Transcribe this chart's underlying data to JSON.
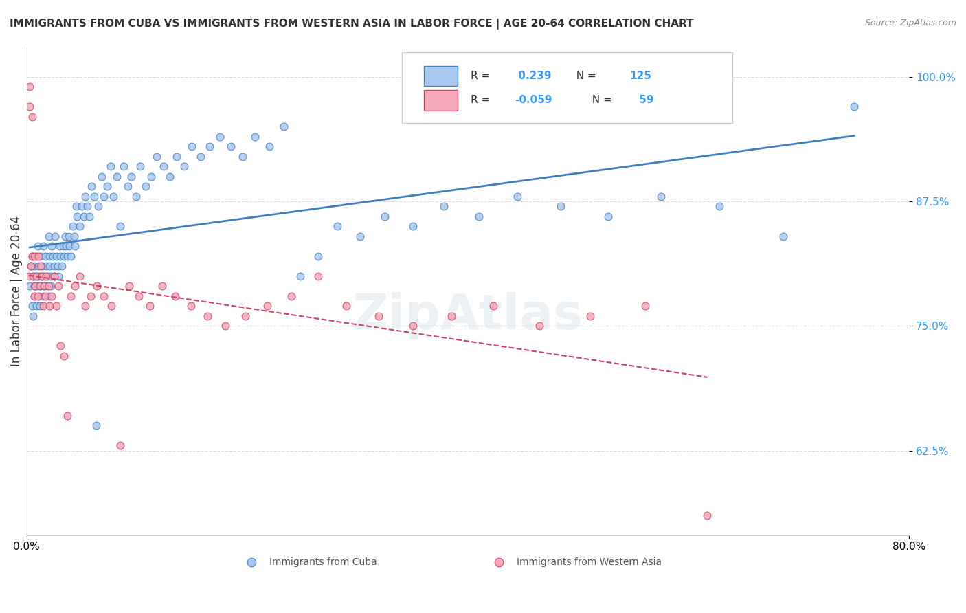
{
  "title": "IMMIGRANTS FROM CUBA VS IMMIGRANTS FROM WESTERN ASIA IN LABOR FORCE | AGE 20-64 CORRELATION CHART",
  "source": "Source: ZipAtlas.com",
  "ylabel": "In Labor Force | Age 20-64",
  "x_label_bottom_left": "0.0%",
  "x_label_bottom_right": "80.0%",
  "y_ticks": [
    0.625,
    0.75,
    0.875,
    1.0
  ],
  "y_tick_labels": [
    "62.5%",
    "75.0%",
    "87.5%",
    "100.0%"
  ],
  "xlim": [
    0.0,
    0.8
  ],
  "ylim": [
    0.54,
    1.03
  ],
  "series1_name": "Immigrants from Cuba",
  "series1_color": "#a8c8f0",
  "series1_line_color": "#4080c0",
  "series1_R": 0.239,
  "series1_N": 125,
  "series2_name": "Immigrants from Western Asia",
  "series2_color": "#f4a8b8",
  "series2_line_color": "#d04060",
  "series2_R": -0.059,
  "series2_N": 59,
  "background_color": "#ffffff",
  "grid_color": "#dddddd",
  "cuba_x": [
    0.003,
    0.004,
    0.005,
    0.005,
    0.006,
    0.006,
    0.007,
    0.007,
    0.007,
    0.008,
    0.008,
    0.009,
    0.009,
    0.01,
    0.01,
    0.01,
    0.011,
    0.011,
    0.012,
    0.012,
    0.013,
    0.013,
    0.014,
    0.014,
    0.015,
    0.015,
    0.016,
    0.016,
    0.017,
    0.018,
    0.019,
    0.019,
    0.02,
    0.02,
    0.021,
    0.021,
    0.022,
    0.022,
    0.023,
    0.024,
    0.025,
    0.025,
    0.026,
    0.027,
    0.028,
    0.029,
    0.03,
    0.031,
    0.032,
    0.033,
    0.034,
    0.035,
    0.036,
    0.037,
    0.038,
    0.039,
    0.04,
    0.042,
    0.043,
    0.044,
    0.045,
    0.046,
    0.048,
    0.05,
    0.052,
    0.053,
    0.055,
    0.057,
    0.059,
    0.061,
    0.063,
    0.065,
    0.068,
    0.07,
    0.073,
    0.076,
    0.079,
    0.082,
    0.085,
    0.088,
    0.092,
    0.095,
    0.099,
    0.103,
    0.108,
    0.113,
    0.118,
    0.124,
    0.13,
    0.136,
    0.143,
    0.15,
    0.158,
    0.166,
    0.175,
    0.185,
    0.196,
    0.207,
    0.22,
    0.233,
    0.248,
    0.264,
    0.282,
    0.302,
    0.325,
    0.35,
    0.378,
    0.41,
    0.445,
    0.484,
    0.527,
    0.575,
    0.628,
    0.686,
    0.75
  ],
  "cuba_y": [
    0.79,
    0.81,
    0.77,
    0.82,
    0.8,
    0.76,
    0.79,
    0.81,
    0.78,
    0.8,
    0.79,
    0.82,
    0.77,
    0.8,
    0.79,
    0.83,
    0.81,
    0.78,
    0.8,
    0.77,
    0.82,
    0.79,
    0.81,
    0.8,
    0.78,
    0.83,
    0.8,
    0.79,
    0.82,
    0.81,
    0.8,
    0.79,
    0.84,
    0.78,
    0.82,
    0.81,
    0.8,
    0.79,
    0.83,
    0.82,
    0.81,
    0.8,
    0.84,
    0.82,
    0.81,
    0.8,
    0.83,
    0.82,
    0.81,
    0.83,
    0.82,
    0.84,
    0.83,
    0.82,
    0.84,
    0.83,
    0.82,
    0.85,
    0.84,
    0.83,
    0.87,
    0.86,
    0.85,
    0.87,
    0.86,
    0.88,
    0.87,
    0.86,
    0.89,
    0.88,
    0.65,
    0.87,
    0.9,
    0.88,
    0.89,
    0.91,
    0.88,
    0.9,
    0.85,
    0.91,
    0.89,
    0.9,
    0.88,
    0.91,
    0.89,
    0.9,
    0.92,
    0.91,
    0.9,
    0.92,
    0.91,
    0.93,
    0.92,
    0.93,
    0.94,
    0.93,
    0.92,
    0.94,
    0.93,
    0.95,
    0.8,
    0.82,
    0.85,
    0.84,
    0.86,
    0.85,
    0.87,
    0.86,
    0.88,
    0.87,
    0.86,
    0.88,
    0.87,
    0.84,
    0.97
  ],
  "wasia_x": [
    0.002,
    0.003,
    0.003,
    0.004,
    0.005,
    0.005,
    0.006,
    0.007,
    0.007,
    0.008,
    0.009,
    0.01,
    0.011,
    0.012,
    0.013,
    0.014,
    0.015,
    0.016,
    0.017,
    0.018,
    0.02,
    0.021,
    0.023,
    0.025,
    0.027,
    0.029,
    0.031,
    0.034,
    0.037,
    0.04,
    0.044,
    0.048,
    0.053,
    0.058,
    0.064,
    0.07,
    0.077,
    0.085,
    0.093,
    0.102,
    0.112,
    0.123,
    0.135,
    0.149,
    0.164,
    0.18,
    0.198,
    0.218,
    0.24,
    0.264,
    0.29,
    0.319,
    0.35,
    0.385,
    0.423,
    0.465,
    0.511,
    0.561,
    0.617
  ],
  "wasia_y": [
    0.8,
    0.99,
    0.97,
    0.81,
    0.82,
    0.96,
    0.8,
    0.78,
    0.82,
    0.79,
    0.8,
    0.78,
    0.82,
    0.79,
    0.81,
    0.8,
    0.77,
    0.79,
    0.78,
    0.8,
    0.79,
    0.77,
    0.78,
    0.8,
    0.77,
    0.79,
    0.73,
    0.72,
    0.66,
    0.78,
    0.79,
    0.8,
    0.77,
    0.78,
    0.79,
    0.78,
    0.77,
    0.63,
    0.79,
    0.78,
    0.77,
    0.79,
    0.78,
    0.77,
    0.76,
    0.75,
    0.76,
    0.77,
    0.78,
    0.8,
    0.77,
    0.76,
    0.75,
    0.76,
    0.77,
    0.75,
    0.76,
    0.77,
    0.56
  ]
}
